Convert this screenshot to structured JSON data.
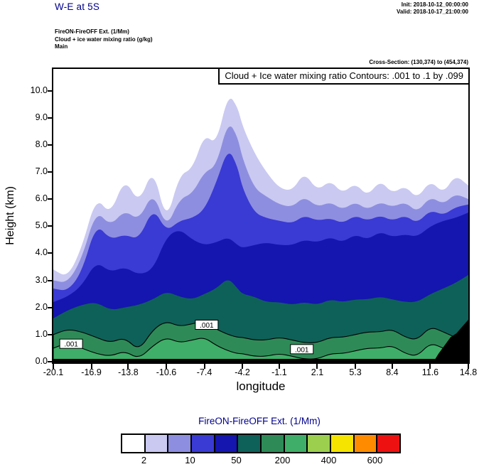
{
  "header": {
    "title": "W-E at 5S",
    "init": "Init: 2018-10-12_00:00:00",
    "valid": "Valid: 2018-10-17_21:00:00",
    "lines": [
      "FireON-FireOFF Ext.  (1/Mm)",
      "Cloud + ice water mixing ratio  (g/kg)",
      "Main"
    ],
    "cross_section": "Cross-Section: (130,374) to (454,374)"
  },
  "chart_data": {
    "type": "heatmap",
    "subtype": "filled-contour-vertical-cross-section",
    "title": "Cloud + Ice water mixing ratio Contours: .001 to .1 by .099",
    "xlabel": "longitude",
    "ylabel": "Height (km)",
    "xlim": [
      -20.1,
      14.8
    ],
    "ylim": [
      0,
      10.8
    ],
    "x_ticks": {
      "values": [
        -20.1,
        -16.9,
        -13.8,
        -10.6,
        -7.4,
        -4.2,
        -1.1,
        2.1,
        5.3,
        8.4,
        11.6,
        14.8
      ],
      "labels": [
        "-20.1",
        "-16.9",
        "-13.8",
        "-10.6",
        "-7.4",
        "-4.2",
        "-1.1",
        "2.1",
        "5.3",
        "8.4",
        "11.6",
        "14.8"
      ]
    },
    "y_ticks": {
      "values": [
        0,
        1,
        2,
        3,
        4,
        5,
        6,
        7,
        8,
        9,
        10
      ],
      "labels": [
        "0.0",
        "1.0",
        "2.0",
        "3.0",
        "4.0",
        "5.0",
        "6.0",
        "7.0",
        "8.0",
        "9.0",
        "10.0"
      ]
    },
    "overlay_contour_levels": [
      0.001,
      0.1
    ],
    "x": [
      -20.1,
      -18.9,
      -17.7,
      -16.5,
      -15.3,
      -14.1,
      -12.9,
      -11.7,
      -10.6,
      -9.5,
      -8.4,
      -7.4,
      -6.4,
      -5.4,
      -4.6,
      -4.2,
      -3.2,
      -2.2,
      -1.1,
      0.0,
      1.0,
      2.1,
      3.2,
      4.2,
      5.3,
      6.3,
      7.4,
      8.4,
      9.5,
      10.5,
      11.6,
      12.7,
      13.7,
      14.8
    ],
    "layers": [
      {
        "name": "lavender",
        "color": "#c9c9f2",
        "stroke": false,
        "heights": [
          3.4,
          3.1,
          4.2,
          6.1,
          5.4,
          6.8,
          5.8,
          7.2,
          5.1,
          6.9,
          7.1,
          8.4,
          8.0,
          9.9,
          9.4,
          8.7,
          7.7,
          7.0,
          6.4,
          6.3,
          7.0,
          6.3,
          6.7,
          6.2,
          6.6,
          6.1,
          6.7,
          6.2,
          6.5,
          6.0,
          6.7,
          6.2,
          6.9,
          6.5
        ]
      },
      {
        "name": "periwinkle",
        "color": "#8e8ee0",
        "stroke": false,
        "heights": [
          3.0,
          2.9,
          3.8,
          5.6,
          5.0,
          5.6,
          5.2,
          6.3,
          4.9,
          6.0,
          6.2,
          7.0,
          7.2,
          8.9,
          8.3,
          7.5,
          6.4,
          6.1,
          5.8,
          5.7,
          6.1,
          5.7,
          5.9,
          5.6,
          5.9,
          5.6,
          5.9,
          5.7,
          5.9,
          5.5,
          6.1,
          5.8,
          6.2,
          6.0
        ]
      },
      {
        "name": "blue",
        "color": "#3a3ad4",
        "stroke": false,
        "heights": [
          2.7,
          2.6,
          3.3,
          5.1,
          4.5,
          4.7,
          4.5,
          5.7,
          4.8,
          5.2,
          5.3,
          5.6,
          6.6,
          7.9,
          7.2,
          6.4,
          5.5,
          5.3,
          5.2,
          5.1,
          5.4,
          5.2,
          5.3,
          5.1,
          5.4,
          5.2,
          5.4,
          5.2,
          5.4,
          5.1,
          5.6,
          5.4,
          5.7,
          5.8
        ]
      },
      {
        "name": "dark-blue",
        "color": "#1515b0",
        "stroke": false,
        "heights": [
          2.2,
          2.4,
          2.8,
          3.7,
          3.3,
          3.5,
          3.2,
          3.4,
          4.6,
          4.9,
          4.5,
          4.3,
          4.4,
          4.6,
          4.3,
          4.2,
          4.3,
          4.4,
          4.3,
          4.3,
          4.5,
          4.4,
          4.6,
          4.4,
          4.7,
          4.5,
          4.8,
          4.6,
          4.7,
          4.6,
          5.0,
          5.2,
          5.3,
          5.5
        ]
      },
      {
        "name": "teal",
        "color": "#0e6158",
        "stroke": false,
        "heights": [
          1.6,
          1.9,
          2.1,
          2.2,
          1.9,
          2.0,
          2.1,
          2.3,
          2.6,
          2.4,
          2.3,
          2.5,
          2.7,
          3.1,
          2.7,
          2.5,
          2.4,
          2.2,
          2.2,
          2.1,
          2.2,
          2.1,
          2.3,
          2.2,
          2.3,
          2.3,
          2.4,
          2.3,
          2.2,
          2.2,
          2.5,
          2.7,
          2.9,
          3.2
        ]
      },
      {
        "name": "sea-green",
        "color": "#2e8b57",
        "stroke": true,
        "heights": [
          1.0,
          1.2,
          1.1,
          0.9,
          0.7,
          0.9,
          0.4,
          1.2,
          1.5,
          1.3,
          1.4,
          1.5,
          1.2,
          1.0,
          0.9,
          0.9,
          0.8,
          0.8,
          0.9,
          0.8,
          0.7,
          0.7,
          0.9,
          0.9,
          1.0,
          1.1,
          1.1,
          1.2,
          0.9,
          0.8,
          1.3,
          1.1,
          0.9,
          0.6
        ]
      },
      {
        "name": "green-core",
        "color": "#3fae68",
        "stroke": true,
        "heights": [
          0.5,
          0.7,
          0.5,
          0.3,
          0.2,
          0.4,
          0.1,
          0.6,
          0.9,
          0.7,
          0.8,
          0.9,
          0.6,
          0.4,
          0.3,
          0.3,
          0.2,
          0.2,
          0.3,
          0.2,
          0.1,
          0.1,
          0.3,
          0.3,
          0.4,
          0.5,
          0.5,
          0.6,
          0.3,
          0.2,
          0.7,
          0.5,
          0.3,
          0.1
        ]
      }
    ],
    "terrain": {
      "color": "#000000",
      "points": [
        [
          11.9,
          0.02
        ],
        [
          12.3,
          0.3
        ],
        [
          12.8,
          0.6
        ],
        [
          13.3,
          0.9
        ],
        [
          13.8,
          1.05
        ],
        [
          14.3,
          1.3
        ],
        [
          14.8,
          1.55
        ]
      ]
    },
    "contour_labels": [
      {
        "text": ".001",
        "lon": -18.6,
        "km": 0.65
      },
      {
        "text": ".001",
        "lon": -7.2,
        "km": 1.35
      },
      {
        "text": ".001",
        "lon": 0.8,
        "km": 0.45
      }
    ],
    "colorbar": {
      "title": "FireON-FireOFF Ext.  (1/Mm)",
      "colors": [
        "#ffffff",
        "#c9c9f2",
        "#8e8ee0",
        "#3a3ad4",
        "#1515b0",
        "#0e6158",
        "#2e8b57",
        "#3fae68",
        "#9ccf4e",
        "#f5e400",
        "#ff8c00",
        "#ee1111"
      ],
      "labels": [
        {
          "text": "2",
          "boundary": 1
        },
        {
          "text": "10",
          "boundary": 3
        },
        {
          "text": "50",
          "boundary": 5
        },
        {
          "text": "200",
          "boundary": 7
        },
        {
          "text": "400",
          "boundary": 9
        },
        {
          "text": "600",
          "boundary": 11
        }
      ]
    }
  }
}
